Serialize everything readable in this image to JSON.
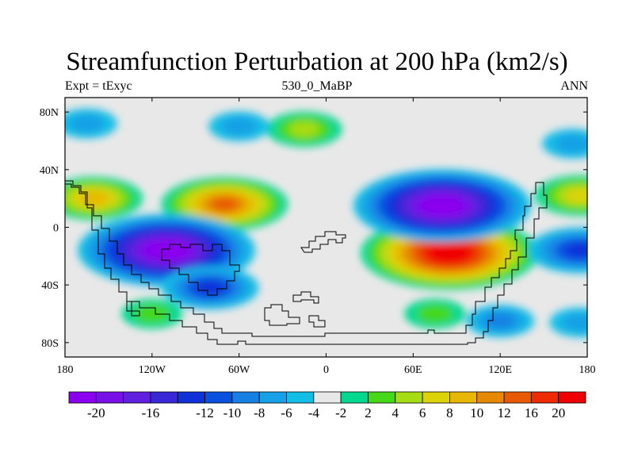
{
  "title": "Streamfunction Perturbation at 200 hPa (km2/s)",
  "left_label": "Expt = tExyc",
  "center_label": "530_0_MaBP",
  "right_label": "ANN",
  "chart_data": {
    "type": "map-contour-filled",
    "projection": "cylindrical-equidistant",
    "x_ticks": [
      {
        "lon": -180,
        "label": "180"
      },
      {
        "lon": -120,
        "label": "120W"
      },
      {
        "lon": -60,
        "label": "60W"
      },
      {
        "lon": 0,
        "label": "0"
      },
      {
        "lon": 60,
        "label": "60E"
      },
      {
        "lon": 120,
        "label": "120E"
      },
      {
        "lon": 180,
        "label": "180"
      }
    ],
    "y_ticks": [
      {
        "lat": 80,
        "label": "80N"
      },
      {
        "lat": 40,
        "label": "40N"
      },
      {
        "lat": 0,
        "label": "0"
      },
      {
        "lat": -40,
        "label": "40S"
      },
      {
        "lat": -80,
        "label": "80S"
      }
    ],
    "xlim": [
      -180,
      180
    ],
    "ylim": [
      -90,
      90
    ],
    "colorbar": {
      "levels": [
        -20,
        -18,
        -16,
        -14,
        -12,
        -10,
        -8,
        -6,
        -4,
        -2,
        2,
        4,
        6,
        8,
        10,
        12,
        16,
        20
      ],
      "labels": [
        "-20",
        "-16",
        "-12",
        "-10",
        "-8",
        "-6",
        "-4",
        "-2",
        "2",
        "4",
        "6",
        "8",
        "10",
        "12",
        "16",
        "20"
      ],
      "label_levels": [
        -20,
        -16,
        -12,
        -10,
        -8,
        -6,
        -4,
        -2,
        2,
        4,
        6,
        8,
        10,
        12,
        16,
        20
      ],
      "colors": [
        "#8a00ee",
        "#7a10e8",
        "#6020de",
        "#3a28d8",
        "#1030d8",
        "#0a50e0",
        "#1680e4",
        "#16a0e6",
        "#12bde6",
        "#e8e8e8",
        "#00d890",
        "#44d818",
        "#a6dc14",
        "#dcd20a",
        "#e8b800",
        "#e58a00",
        "#e85a00",
        "#ee2a00",
        "#f00000"
      ]
    },
    "anomalies": [
      {
        "sign": "+",
        "lon": 85,
        "lat": -18,
        "amplitude": 20
      },
      {
        "sign": "+",
        "lon": -70,
        "lat": 16,
        "amplitude": 13
      },
      {
        "sign": "+",
        "lon": -160,
        "lat": 20,
        "amplitude": 9
      },
      {
        "sign": "+",
        "lon": 175,
        "lat": 22,
        "amplitude": 8
      },
      {
        "sign": "+",
        "lon": -15,
        "lat": 68,
        "amplitude": 6
      },
      {
        "sign": "+",
        "lon": 75,
        "lat": -60,
        "amplitude": 4
      },
      {
        "sign": "+",
        "lon": -120,
        "lat": -60,
        "amplitude": 4
      },
      {
        "sign": "-",
        "lon": 80,
        "lat": 15,
        "amplitude": 20
      },
      {
        "sign": "-",
        "lon": -110,
        "lat": -16,
        "amplitude": 20
      },
      {
        "sign": "-",
        "lon": 175,
        "lat": -16,
        "amplitude": 10
      },
      {
        "sign": "-",
        "lon": -80,
        "lat": -42,
        "amplitude": 9
      },
      {
        "sign": "-",
        "lon": -165,
        "lat": 72,
        "amplitude": 4
      },
      {
        "sign": "-",
        "lon": -60,
        "lat": 70,
        "amplitude": 4
      },
      {
        "sign": "-",
        "lon": 120,
        "lat": -65,
        "amplitude": 5
      },
      {
        "sign": "-",
        "lon": 175,
        "lat": -66,
        "amplitude": 4
      },
      {
        "sign": "-",
        "lon": 170,
        "lat": 58,
        "amplitude": 4
      }
    ]
  }
}
